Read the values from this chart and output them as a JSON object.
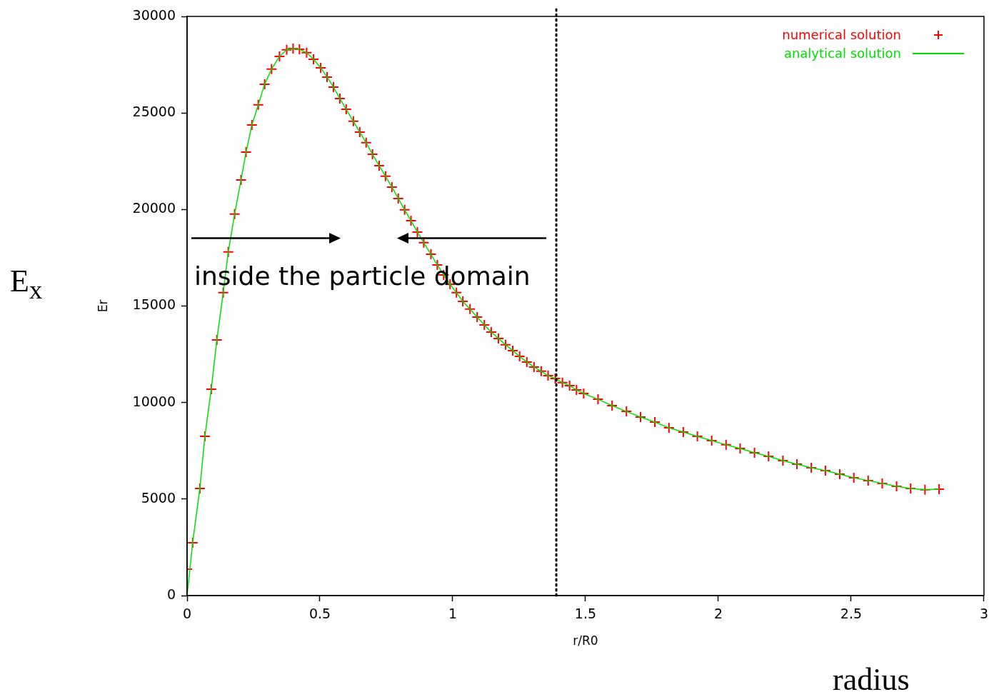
{
  "chart_data": {
    "type": "scatter",
    "xlabel": "r/R0",
    "ylabel": "Er",
    "xlim": [
      0,
      3
    ],
    "xticks": [
      0,
      0.5,
      1,
      1.5,
      2,
      2.5,
      3
    ],
    "ylim": [
      0,
      30000
    ],
    "yticks": [
      0,
      5000,
      10000,
      15000,
      20000,
      25000,
      30000
    ],
    "grid": false,
    "legend": "top right",
    "series": [
      {
        "name": "numerical solution",
        "type": "scatter",
        "marker": "cross",
        "color": "#ff0000",
        "x": [
          0,
          0.021,
          0.048,
          0.067,
          0.091,
          0.112,
          0.136,
          0.155,
          0.179,
          0.203,
          0.222,
          0.244,
          0.268,
          0.292,
          0.318,
          0.348,
          0.375,
          0.399,
          0.423,
          0.45,
          0.476,
          0.503,
          0.527,
          0.551,
          0.575,
          0.599,
          0.626,
          0.65,
          0.674,
          0.698,
          0.723,
          0.747,
          0.771,
          0.795,
          0.819,
          0.843,
          0.867,
          0.891,
          0.918,
          0.942,
          0.966,
          0.99,
          1.014,
          1.038,
          1.065,
          1.092,
          1.119,
          1.145,
          1.172,
          1.199,
          1.226,
          1.252,
          1.279,
          1.306,
          1.333,
          1.359,
          1.386,
          1.413,
          1.44,
          1.466,
          1.493,
          1.547,
          1.6,
          1.654,
          1.707,
          1.761,
          1.814,
          1.868,
          1.921,
          1.975,
          2.029,
          2.082,
          2.136,
          2.189,
          2.243,
          2.296,
          2.35,
          2.403,
          2.457,
          2.51,
          2.564,
          2.617,
          2.671,
          2.724,
          2.778,
          2.831
        ],
        "values": [
          1370,
          2740,
          5550,
          8250,
          10690,
          13240,
          15690,
          17800,
          19760,
          21530,
          22970,
          24380,
          25420,
          26490,
          27270,
          27930,
          28270,
          28340,
          28300,
          28120,
          27780,
          27340,
          26860,
          26340,
          25750,
          25190,
          24570,
          24010,
          23460,
          22860,
          22270,
          21720,
          21160,
          20570,
          19980,
          19420,
          18830,
          18280,
          17680,
          17130,
          16610,
          16130,
          15690,
          15240,
          14840,
          14430,
          14020,
          13650,
          13320,
          12990,
          12690,
          12390,
          12100,
          11840,
          11620,
          11390,
          11250,
          11030,
          10880,
          10650,
          10470,
          10170,
          9840,
          9540,
          9250,
          8990,
          8690,
          8470,
          8250,
          8030,
          7810,
          7620,
          7400,
          7210,
          6990,
          6810,
          6620,
          6470,
          6290,
          6100,
          5960,
          5810,
          5660,
          5550,
          5480,
          5510
        ]
      },
      {
        "name": "analytical solution",
        "type": "line",
        "marker": "none",
        "color": "#00e000",
        "x": [
          0,
          0.021,
          0.048,
          0.067,
          0.091,
          0.112,
          0.136,
          0.155,
          0.179,
          0.203,
          0.222,
          0.244,
          0.268,
          0.292,
          0.318,
          0.348,
          0.375,
          0.399,
          0.423,
          0.45,
          0.476,
          0.503,
          0.527,
          0.551,
          0.575,
          0.599,
          0.626,
          0.65,
          0.674,
          0.698,
          0.723,
          0.747,
          0.771,
          0.795,
          0.819,
          0.843,
          0.867,
          0.891,
          0.918,
          0.942,
          0.966,
          0.99,
          1.014,
          1.038,
          1.065,
          1.092,
          1.119,
          1.145,
          1.172,
          1.199,
          1.226,
          1.252,
          1.279,
          1.306,
          1.333,
          1.359,
          1.386,
          1.413,
          1.44,
          1.466,
          1.493,
          1.547,
          1.6,
          1.654,
          1.707,
          1.761,
          1.814,
          1.868,
          1.921,
          1.975,
          2.029,
          2.082,
          2.136,
          2.189,
          2.243,
          2.296,
          2.35,
          2.403,
          2.457,
          2.51,
          2.564,
          2.617,
          2.671,
          2.724,
          2.778,
          2.831
        ],
        "values": [
          0,
          2740,
          5550,
          8250,
          10690,
          13240,
          15690,
          17800,
          19760,
          21530,
          22970,
          24380,
          25420,
          26490,
          27270,
          27930,
          28270,
          28340,
          28300,
          28120,
          27780,
          27340,
          26860,
          26340,
          25750,
          25190,
          24570,
          24010,
          23460,
          22860,
          22270,
          21720,
          21160,
          20570,
          19980,
          19420,
          18830,
          18280,
          17680,
          17130,
          16610,
          16130,
          15690,
          15240,
          14840,
          14430,
          14020,
          13650,
          13320,
          12990,
          12690,
          12390,
          12100,
          11840,
          11620,
          11390,
          11250,
          11030,
          10880,
          10650,
          10470,
          10170,
          9840,
          9540,
          9250,
          8990,
          8690,
          8470,
          8250,
          8030,
          7810,
          7620,
          7400,
          7210,
          6990,
          6810,
          6620,
          6470,
          6290,
          6100,
          5960,
          5810,
          5660,
          5550,
          5480,
          5510
        ]
      }
    ],
    "ref_lines": [
      {
        "axis": "x",
        "value": 1.39,
        "color": "#000000",
        "line_style": "dotted"
      }
    ],
    "annotations": [
      "inside the particle domain",
      "E$_{x}$",
      "radius"
    ]
  }
}
